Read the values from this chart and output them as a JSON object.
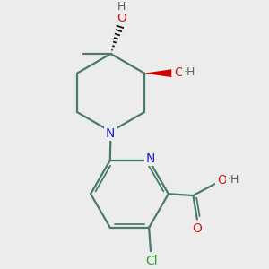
{
  "bg_color": "#ececec",
  "bond_color": "#4a7a6a",
  "n_color": "#2020cc",
  "o_color": "#cc2020",
  "cl_color": "#22aa22",
  "h_color": "#606060",
  "lw": 1.6,
  "xlim": [
    0,
    10
  ],
  "ylim": [
    0,
    10
  ]
}
